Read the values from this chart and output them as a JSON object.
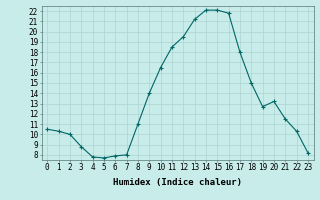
{
  "xlabel": "Humidex (Indice chaleur)",
  "x": [
    0,
    1,
    2,
    3,
    4,
    5,
    6,
    7,
    8,
    9,
    10,
    11,
    12,
    13,
    14,
    15,
    16,
    17,
    18,
    19,
    20,
    21,
    22,
    23
  ],
  "y": [
    10.5,
    10.3,
    10.0,
    8.8,
    7.8,
    7.7,
    7.9,
    8.0,
    11.0,
    14.0,
    16.5,
    18.5,
    19.5,
    21.2,
    22.1,
    22.1,
    21.8,
    18.0,
    15.0,
    12.7,
    13.2,
    11.5,
    10.3,
    8.2
  ],
  "xlim": [
    -0.5,
    23.5
  ],
  "ylim": [
    7.5,
    22.5
  ],
  "yticks": [
    8,
    9,
    10,
    11,
    12,
    13,
    14,
    15,
    16,
    17,
    18,
    19,
    20,
    21,
    22
  ],
  "xticks": [
    0,
    1,
    2,
    3,
    4,
    5,
    6,
    7,
    8,
    9,
    10,
    11,
    12,
    13,
    14,
    15,
    16,
    17,
    18,
    19,
    20,
    21,
    22,
    23
  ],
  "line_color": "#006666",
  "marker": "+",
  "bg_color": "#c8ecea",
  "grid_color": "#aed4d2",
  "label_fontsize": 6.5,
  "tick_fontsize": 5.5
}
